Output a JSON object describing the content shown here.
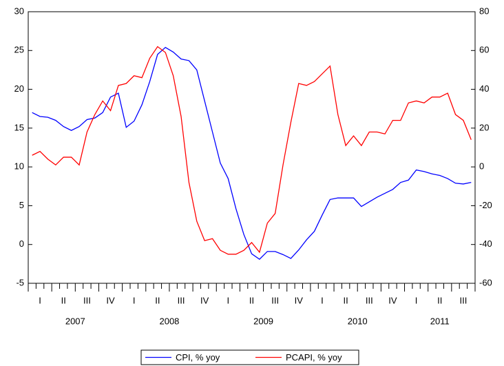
{
  "chart_data": {
    "type": "line",
    "categories": [
      null,
      "I",
      null,
      null,
      "II",
      null,
      null,
      "III",
      null,
      null,
      "IV",
      null,
      null,
      "I",
      null,
      null,
      "II",
      null,
      null,
      "III",
      null,
      null,
      "IV",
      null,
      null,
      "I",
      null,
      null,
      "II",
      null,
      null,
      "III",
      null,
      null,
      "IV",
      null,
      null,
      "I",
      null,
      null,
      "II",
      null,
      null,
      "III",
      null,
      null,
      "IV",
      null,
      null,
      "I",
      null,
      null,
      "II",
      null,
      null,
      "III",
      null
    ],
    "years": [
      "2007",
      "2008",
      "2009",
      "2010",
      "2011"
    ],
    "ylim": [
      -5,
      30
    ],
    "yticks": [
      -5,
      0,
      5,
      10,
      15,
      20,
      25,
      30
    ],
    "y2lim": [
      -60,
      80
    ],
    "y2ticks": [
      -60,
      -40,
      -20,
      0,
      20,
      40,
      60,
      80
    ],
    "legend": "bottom",
    "series": [
      {
        "name": "CPI, % yoy",
        "color": "#0000ff",
        "axis": "y",
        "values": [
          17.0,
          16.5,
          16.4,
          16.0,
          15.2,
          14.7,
          15.2,
          16.1,
          16.3,
          17.0,
          19.0,
          19.5,
          15.1,
          15.9,
          18.0,
          21.0,
          24.5,
          25.4,
          24.8,
          23.9,
          23.7,
          22.5,
          18.5,
          14.5,
          10.5,
          8.5,
          4.6,
          1.3,
          -1.2,
          -1.9,
          -0.9,
          -0.9,
          -1.3,
          -1.8,
          -0.7,
          0.6,
          1.7,
          3.8,
          5.8,
          6.0,
          6.0,
          6.0,
          4.9,
          5.5,
          6.1,
          6.6,
          7.1,
          8.0,
          8.3,
          9.6,
          9.4,
          9.1,
          8.9,
          8.5,
          7.9,
          7.8,
          8.0
        ]
      },
      {
        "name": "PCAPI, % yoy",
        "color": "#ff0000",
        "axis": "y2",
        "values": [
          6,
          8,
          4,
          1,
          5,
          5,
          1,
          18,
          27,
          34,
          29,
          42,
          43,
          47,
          46,
          56,
          62,
          59,
          47,
          26,
          -8,
          -28,
          -38,
          -37,
          -43,
          -45,
          -45,
          -43,
          -39,
          -44,
          -29,
          -24,
          1,
          23,
          43,
          42,
          44,
          48,
          52,
          27,
          11,
          16,
          11,
          18,
          18,
          17,
          24,
          24,
          33,
          34,
          33,
          36,
          36,
          38,
          27,
          24,
          14
        ]
      }
    ]
  }
}
